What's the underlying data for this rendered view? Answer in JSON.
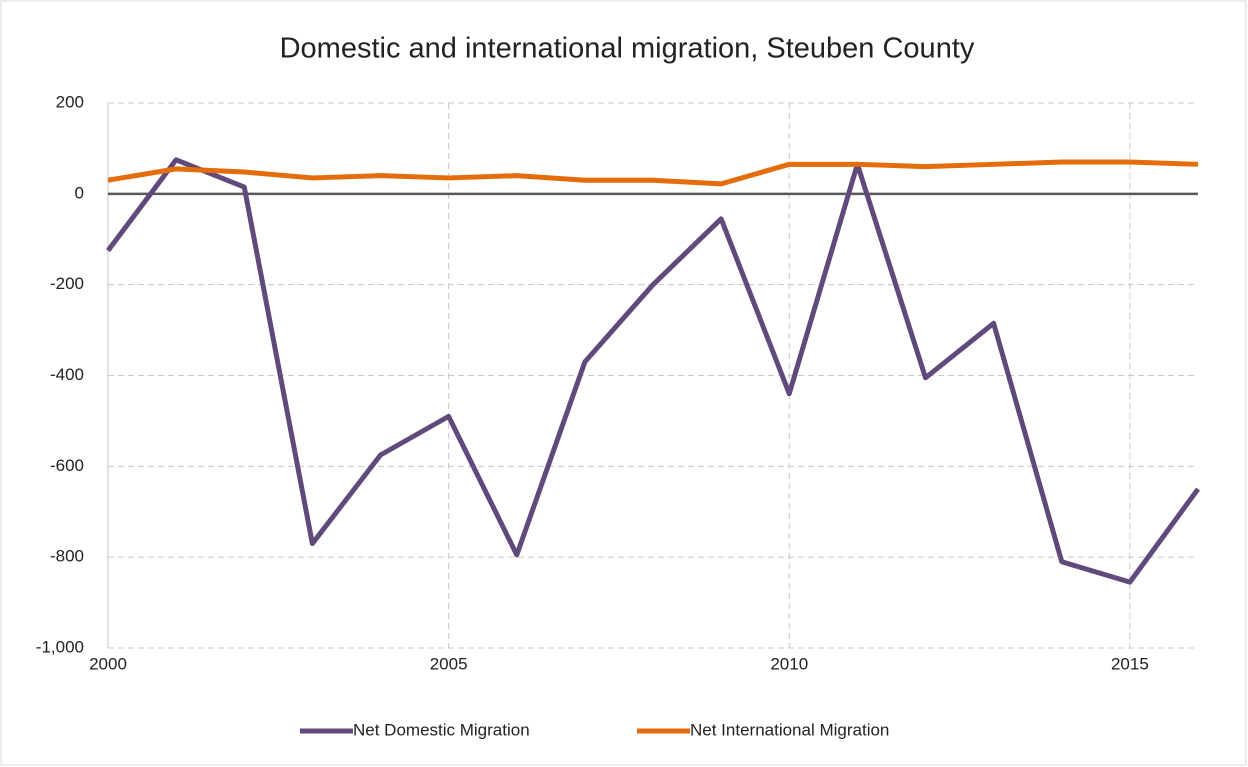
{
  "chart_data": {
    "type": "line",
    "title": "Domestic and international migration, Steuben County",
    "x": [
      2000,
      2001,
      2002,
      2003,
      2004,
      2005,
      2006,
      2007,
      2008,
      2009,
      2010,
      2011,
      2012,
      2013,
      2014,
      2015,
      2016
    ],
    "series": [
      {
        "name": "Net Domestic Migration",
        "color": "#604a7b",
        "values": [
          -125,
          75,
          15,
          -770,
          -575,
          -490,
          -795,
          -370,
          -200,
          -55,
          -440,
          65,
          -405,
          -285,
          -810,
          -855,
          -650
        ]
      },
      {
        "name": "Net International Migration",
        "color": "#e46c0a",
        "values": [
          30,
          55,
          48,
          35,
          40,
          35,
          40,
          30,
          30,
          22,
          65,
          65,
          60,
          65,
          70,
          70,
          65
        ]
      }
    ],
    "xlim": [
      2000,
      2016
    ],
    "xticks": [
      2000,
      2005,
      2010,
      2015
    ],
    "ylim": [
      -1000,
      200
    ],
    "yticks": [
      {
        "value": -1000,
        "label": "-1,000"
      },
      -800,
      -600,
      -400,
      -200,
      0,
      200
    ],
    "grid": true,
    "legend": "bottom"
  }
}
